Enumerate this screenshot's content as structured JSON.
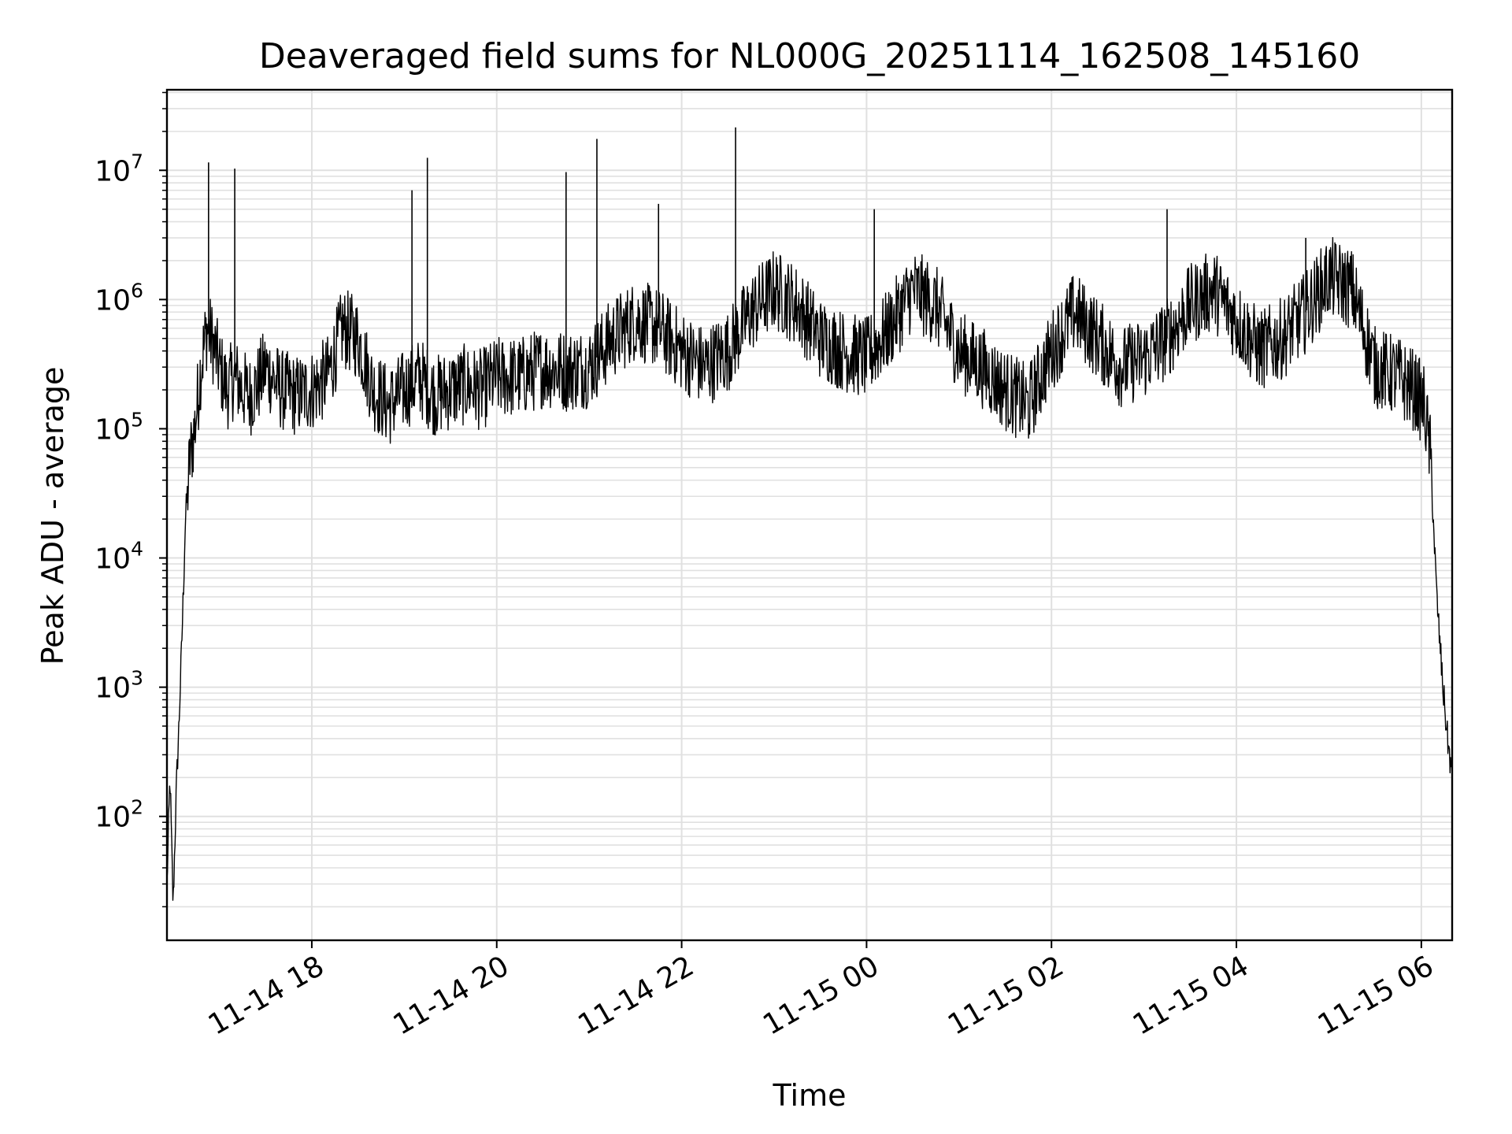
{
  "chart_data": {
    "type": "line",
    "title": "Deaveraged field sums for NL000G_20251114_162508_145160",
    "xlabel": "Time",
    "ylabel": "Peak ADU - average",
    "yscale": "log",
    "ylim": [
      11,
      42000000
    ],
    "xlim": [
      "2025-11-14T16:26:00",
      "2025-11-15T06:20:00"
    ],
    "grid": true,
    "line_color": "#000000",
    "grid_color": "#e0e0e0",
    "x_ticks": [
      {
        "value": "2025-11-14T18:00",
        "label": "11-14 18"
      },
      {
        "value": "2025-11-14T20:00",
        "label": "11-14 20"
      },
      {
        "value": "2025-11-14T22:00",
        "label": "11-14 22"
      },
      {
        "value": "2025-11-15T00:00",
        "label": "11-15 00"
      },
      {
        "value": "2025-11-15T02:00",
        "label": "11-15 02"
      },
      {
        "value": "2025-11-15T04:00",
        "label": "11-15 04"
      },
      {
        "value": "2025-11-15T06:00",
        "label": "11-15 06"
      }
    ],
    "y_ticks": [
      {
        "value": 100,
        "base": "10",
        "exp": "2"
      },
      {
        "value": 1000,
        "base": "10",
        "exp": "3"
      },
      {
        "value": 10000,
        "base": "10",
        "exp": "4"
      },
      {
        "value": 100000,
        "base": "10",
        "exp": "5"
      },
      {
        "value": 1000000,
        "base": "10",
        "exp": "6"
      },
      {
        "value": 10000000,
        "base": "10",
        "exp": "7"
      }
    ],
    "series": [
      {
        "x": [
          "2025-11-14T16:26",
          "2025-11-14T16:28",
          "2025-11-14T16:30",
          "2025-11-14T16:32",
          "2025-11-14T16:34",
          "2025-11-14T16:36",
          "2025-11-14T16:38",
          "2025-11-14T16:41",
          "2025-11-14T16:44",
          "2025-11-14T16:48",
          "2025-11-14T16:52",
          "2025-11-14T16:56",
          "2025-11-14T17:00",
          "2025-11-14T17:05",
          "2025-11-14T17:10",
          "2025-11-14T17:15",
          "2025-11-14T17:20",
          "2025-11-14T17:25",
          "2025-11-14T17:30",
          "2025-11-14T17:40",
          "2025-11-14T17:50",
          "2025-11-14T18:00",
          "2025-11-14T18:10",
          "2025-11-14T18:20",
          "2025-11-14T18:30",
          "2025-11-14T18:40",
          "2025-11-14T18:50",
          "2025-11-14T19:00",
          "2025-11-14T19:10",
          "2025-11-14T19:20",
          "2025-11-14T19:30",
          "2025-11-14T19:40",
          "2025-11-14T19:50",
          "2025-11-14T20:00",
          "2025-11-14T20:15",
          "2025-11-14T20:30",
          "2025-11-14T20:45",
          "2025-11-14T21:00",
          "2025-11-14T21:15",
          "2025-11-14T21:30",
          "2025-11-14T21:45",
          "2025-11-14T22:00",
          "2025-11-14T22:15",
          "2025-11-14T22:30",
          "2025-11-14T22:45",
          "2025-11-14T23:00",
          "2025-11-14T23:15",
          "2025-11-14T23:30",
          "2025-11-14T23:45",
          "2025-11-15T00:00",
          "2025-11-15T00:15",
          "2025-11-15T00:30",
          "2025-11-15T00:45",
          "2025-11-15T01:00",
          "2025-11-15T01:15",
          "2025-11-15T01:30",
          "2025-11-15T01:45",
          "2025-11-15T02:00",
          "2025-11-15T02:15",
          "2025-11-15T02:30",
          "2025-11-15T02:45",
          "2025-11-15T03:00",
          "2025-11-15T03:15",
          "2025-11-15T03:30",
          "2025-11-15T03:45",
          "2025-11-15T04:00",
          "2025-11-15T04:15",
          "2025-11-15T04:30",
          "2025-11-15T04:45",
          "2025-11-15T05:00",
          "2025-11-15T05:15",
          "2025-11-15T05:30",
          "2025-11-15T05:45",
          "2025-11-15T05:55",
          "2025-11-15T06:02",
          "2025-11-15T06:06",
          "2025-11-15T06:10",
          "2025-11-15T06:14",
          "2025-11-15T06:17",
          "2025-11-15T06:20"
        ],
        "y": [
          30,
          200,
          20,
          150,
          600,
          3000,
          20000,
          60000,
          100000,
          300000,
          600000,
          450000,
          300000,
          200000,
          250000,
          200000,
          180000,
          220000,
          300000,
          200000,
          180000,
          200000,
          250000,
          600000,
          500000,
          200000,
          150000,
          200000,
          250000,
          180000,
          200000,
          220000,
          200000,
          250000,
          250000,
          300000,
          280000,
          300000,
          500000,
          700000,
          600000,
          400000,
          300000,
          400000,
          800000,
          1200000,
          900000,
          500000,
          400000,
          350000,
          600000,
          1200000,
          900000,
          400000,
          300000,
          200000,
          150000,
          400000,
          800000,
          500000,
          300000,
          350000,
          500000,
          900000,
          1200000,
          700000,
          400000,
          500000,
          800000,
          1500000,
          1200000,
          300000,
          250000,
          200000,
          150000,
          60000,
          5000,
          1000,
          400,
          200
        ]
      }
    ],
    "spikes": [
      {
        "x": "2025-11-14T16:53",
        "y": 11500000
      },
      {
        "x": "2025-11-14T17:10",
        "y": 10300000
      },
      {
        "x": "2025-11-14T19:05",
        "y": 7000000
      },
      {
        "x": "2025-11-14T19:15",
        "y": 12500000
      },
      {
        "x": "2025-11-14T20:45",
        "y": 9700000
      },
      {
        "x": "2025-11-14T21:05",
        "y": 17500000
      },
      {
        "x": "2025-11-14T21:45",
        "y": 5500000
      },
      {
        "x": "2025-11-14T22:35",
        "y": 21500000
      },
      {
        "x": "2025-11-15T00:05",
        "y": 5000000
      },
      {
        "x": "2025-11-15T03:15",
        "y": 5000000
      },
      {
        "x": "2025-11-15T04:45",
        "y": 3000000
      }
    ]
  }
}
